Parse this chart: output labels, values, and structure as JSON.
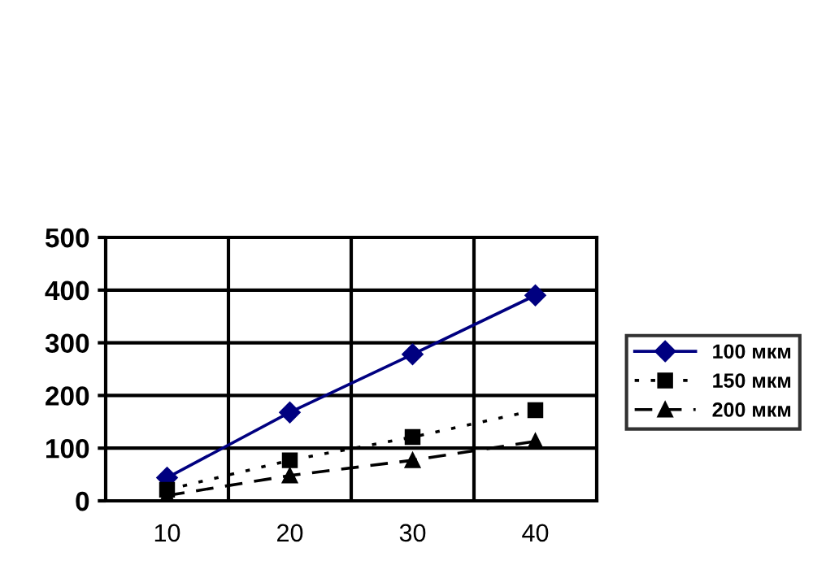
{
  "chart_data": {
    "type": "line",
    "categories": [
      "10",
      "20",
      "30",
      "40"
    ],
    "series": [
      {
        "name": "100 мкм",
        "color": "#000080",
        "values": [
          44,
          168,
          278,
          390
        ],
        "marker": "diamond",
        "line_style": "solid"
      },
      {
        "name": "150 мкм",
        "color": "#000000",
        "values": [
          21,
          77,
          121,
          172
        ],
        "marker": "square",
        "line_style": "dotted"
      },
      {
        "name": "200 мкм",
        "color": "#000000",
        "values": [
          10,
          48,
          77,
          113
        ],
        "marker": "triangle",
        "line_style": "dashed"
      }
    ],
    "ylim": [
      0,
      500
    ],
    "yticks": [
      0,
      100,
      200,
      300,
      400,
      500
    ],
    "grid": true,
    "legend": "right"
  }
}
